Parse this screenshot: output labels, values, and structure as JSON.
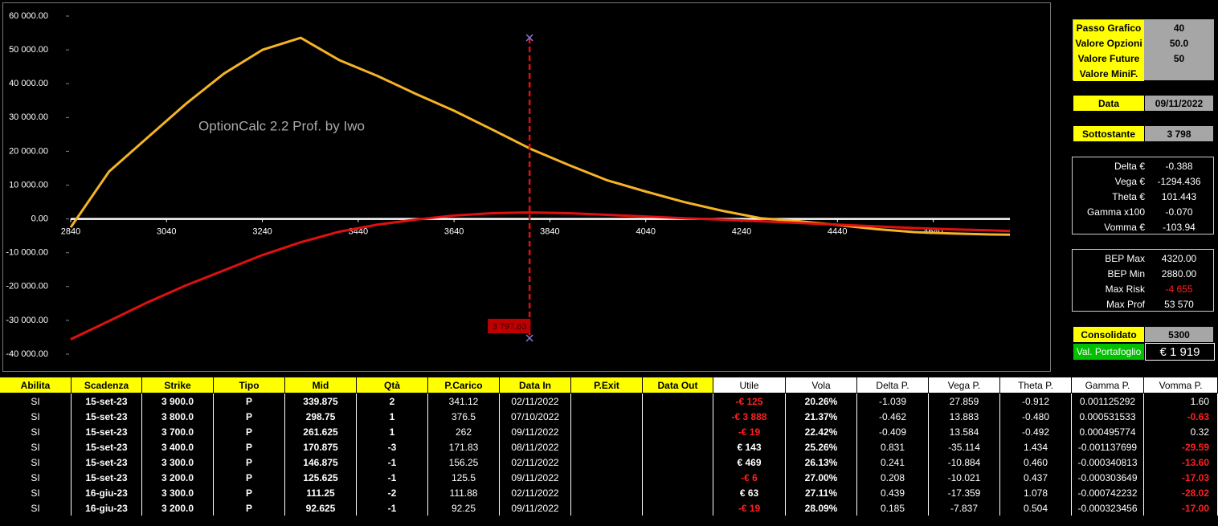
{
  "chart_data": {
    "type": "line",
    "annotation": "OptionCalc 2.2 Prof. by Iwo",
    "x": [
      2840,
      2920,
      3000,
      3080,
      3160,
      3240,
      3320,
      3400,
      3480,
      3560,
      3640,
      3720,
      3800,
      3880,
      3960,
      4040,
      4120,
      4200,
      4280,
      4360,
      4440,
      4520,
      4600,
      4680,
      4760,
      4800
    ],
    "series": [
      {
        "color": "#f5b325",
        "values": [
          -2500,
          14000,
          24000,
          34000,
          43000,
          50000,
          53570,
          47000,
          42300,
          37000,
          32000,
          26400,
          20700,
          15900,
          11400,
          8100,
          5000,
          2400,
          200,
          -700,
          -1800,
          -3000,
          -3900,
          -4300,
          -4600,
          -4655
        ]
      },
      {
        "color": "#e01010",
        "values": [
          -35600,
          -30200,
          -24700,
          -19700,
          -15200,
          -10700,
          -6900,
          -3800,
          -1700,
          -200,
          1000,
          1700,
          1900,
          1700,
          1200,
          700,
          200,
          -200,
          -700,
          -1200,
          -1700,
          -2200,
          -2700,
          -3100,
          -3400,
          -3600
        ]
      }
    ],
    "xlim": [
      2840,
      4800
    ],
    "ylim": [
      -40000,
      60000
    ],
    "xticks": [
      2840,
      3040,
      3240,
      3440,
      3640,
      3840,
      4040,
      4240,
      4440,
      4640
    ],
    "yticks": [
      {
        "value": -40000,
        "label": "-40 000.00"
      },
      {
        "value": -30000,
        "label": "-30 000.00"
      },
      {
        "value": -20000,
        "label": "-20 000.00"
      },
      {
        "value": -10000,
        "label": "-10 000.00"
      },
      {
        "value": 0,
        "label": "0.00"
      },
      {
        "value": 10000,
        "label": "10 000.00"
      },
      {
        "value": 20000,
        "label": "20 000.00"
      },
      {
        "value": 30000,
        "label": "30 000.00"
      },
      {
        "value": 40000,
        "label": "40 000.00"
      },
      {
        "value": 50000,
        "label": "50 000.00"
      },
      {
        "value": 60000,
        "label": "60 000.00"
      }
    ],
    "marker": {
      "value": 3797.63,
      "label": "3 797.63",
      "color": "#e01010"
    }
  },
  "panel": {
    "settings": [
      {
        "label": "Passo Grafico",
        "value": "40"
      },
      {
        "label": "Valore Opzioni",
        "value": "50.0"
      },
      {
        "label": "Valore Future",
        "value": "50"
      },
      {
        "label": "Valore MiniF.",
        "value": null
      }
    ],
    "date": {
      "label": "Data",
      "value": "09/11/2022"
    },
    "underlying": {
      "label": "Sottostante",
      "value": "3 798"
    },
    "greeks": [
      {
        "label": "Delta €",
        "value": "-0.388"
      },
      {
        "label": "Vega €",
        "value": "-1294.436"
      },
      {
        "label": "Theta €",
        "value": "101.443"
      },
      {
        "label": "Gamma x100",
        "value": "-0.070"
      },
      {
        "label": "Vomma €",
        "value": "-103.94"
      }
    ],
    "risk": [
      {
        "label": "BEP Max",
        "value": "4320.00"
      },
      {
        "label": "BEP Min",
        "value": "2880.00"
      },
      {
        "label": "Max Risk",
        "value": "-4 655"
      },
      {
        "label": "Max Prof",
        "value": "53 570"
      }
    ],
    "consolidated": {
      "label": "Consolidato",
      "value": "5300"
    },
    "portfolio": {
      "label": "Val. Portafoglio",
      "value": "€ 1 919"
    }
  },
  "table": {
    "headers": [
      "Abilita",
      "Scadenza",
      "Strike",
      "Tipo",
      "Mid",
      "Qtà",
      "P.Carico",
      "Data In",
      "P.Exit",
      "Data Out",
      "Utile",
      "Vola",
      "Delta P.",
      "Vega P.",
      "Theta P.",
      "Gamma P.",
      "Vomma P."
    ],
    "rows": [
      [
        "SI",
        "15-set-23",
        "3 900.0",
        "P",
        "339.875",
        "2",
        "341.12",
        "02/11/2022",
        null,
        null,
        "-€ 125",
        "20.26%",
        "-1.039",
        "27.859",
        "-0.912",
        "0.001125292",
        "1.60"
      ],
      [
        "SI",
        "15-set-23",
        "3 800.0",
        "P",
        "298.75",
        "1",
        "376.5",
        "07/10/2022",
        null,
        null,
        "-€ 3 888",
        "21.37%",
        "-0.462",
        "13.883",
        "-0.480",
        "0.000531533",
        "-0.63"
      ],
      [
        "SI",
        "15-set-23",
        "3 700.0",
        "P",
        "261.625",
        "1",
        "262",
        "09/11/2022",
        null,
        null,
        "-€ 19",
        "22.42%",
        "-0.409",
        "13.584",
        "-0.492",
        "0.000495774",
        "0.32"
      ],
      [
        "SI",
        "15-set-23",
        "3 400.0",
        "P",
        "170.875",
        "-3",
        "171.83",
        "08/11/2022",
        null,
        null,
        "€ 143",
        "25.26%",
        "0.831",
        "-35.114",
        "1.434",
        "-0.001137699",
        "-29.59"
      ],
      [
        "SI",
        "15-set-23",
        "3 300.0",
        "P",
        "146.875",
        "-1",
        "156.25",
        "02/11/2022",
        null,
        null,
        "€ 469",
        "26.13%",
        "0.241",
        "-10.884",
        "0.460",
        "-0.000340813",
        "-13.60"
      ],
      [
        "SI",
        "15-set-23",
        "3 200.0",
        "P",
        "125.625",
        "-1",
        "125.5",
        "09/11/2022",
        null,
        null,
        "-€ 6",
        "27.00%",
        "0.208",
        "-10.021",
        "0.437",
        "-0.000303649",
        "-17.03"
      ],
      [
        "SI",
        "16-giu-23",
        "3 300.0",
        "P",
        "111.25",
        "-2",
        "111.88",
        "02/11/2022",
        null,
        null,
        "€ 63",
        "27.11%",
        "0.439",
        "-17.359",
        "1.078",
        "-0.000742232",
        "-28.02"
      ],
      [
        "SI",
        "16-giu-23",
        "3 200.0",
        "P",
        "92.625",
        "-1",
        "92.25",
        "09/11/2022",
        null,
        null,
        "-€ 19",
        "28.09%",
        "0.185",
        "-7.837",
        "0.504",
        "-0.000323456",
        "-17.00"
      ]
    ]
  }
}
